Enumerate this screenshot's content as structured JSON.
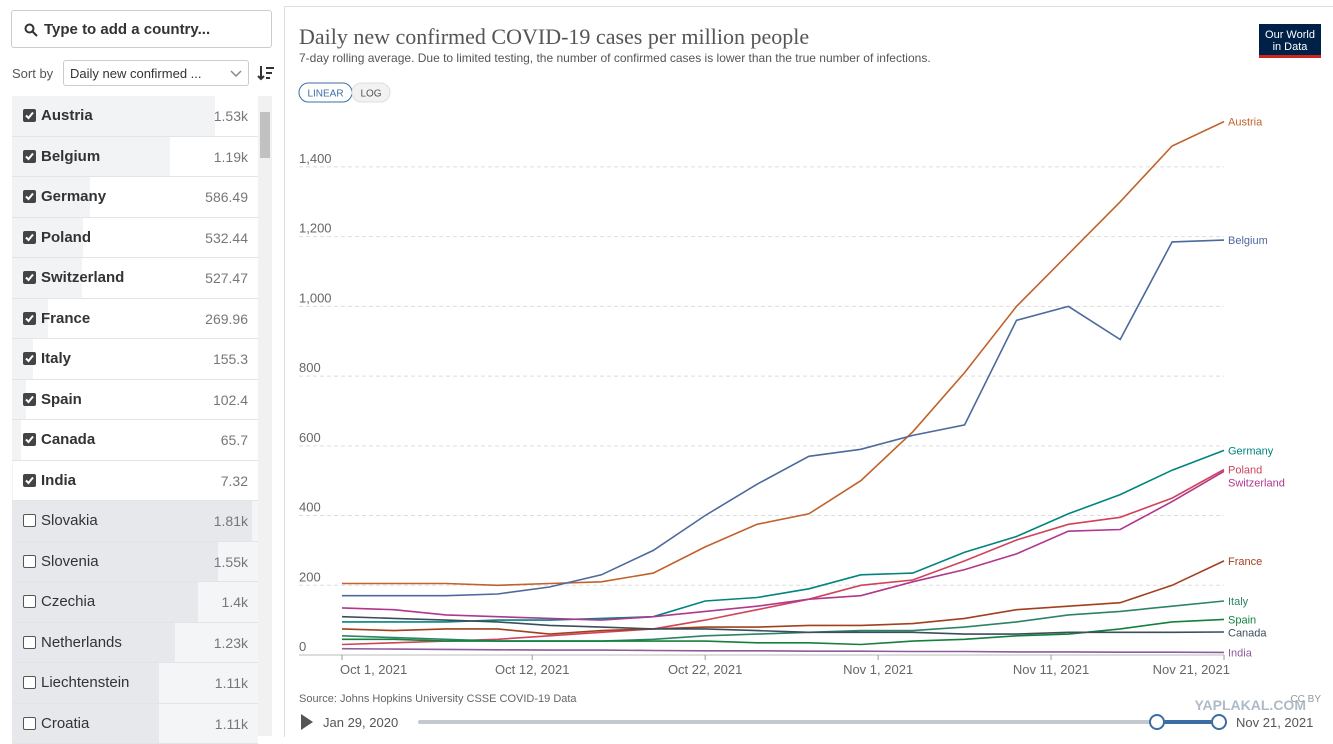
{
  "sidebar": {
    "search_placeholder": "Type to add a country...",
    "sort_label": "Sort by",
    "sort_value": "Daily new confirmed ...",
    "countries": [
      {
        "name": "Austria",
        "value": {
          "value": 1530,
          "label": "1.53k"
        },
        "checked": true
      },
      {
        "name": "Belgium",
        "value": {
          "value": 1190,
          "label": "1.19k"
        },
        "checked": true
      },
      {
        "name": "Germany",
        "value": 586.49,
        "checked": true
      },
      {
        "name": "Poland",
        "value": 532.44,
        "checked": true
      },
      {
        "name": "Switzerland",
        "value": 527.47,
        "checked": true
      },
      {
        "name": "France",
        "value": 269.96,
        "checked": true
      },
      {
        "name": "Italy",
        "value": 155.3,
        "checked": true
      },
      {
        "name": "Spain",
        "value": 102.4,
        "checked": true
      },
      {
        "name": "Canada",
        "value": 65.7,
        "checked": true
      },
      {
        "name": "India",
        "value": 7.32,
        "checked": true
      },
      {
        "name": "Slovakia",
        "value": {
          "value": 1810,
          "label": "1.81k"
        },
        "checked": false
      },
      {
        "name": "Slovenia",
        "value": {
          "value": 1550,
          "label": "1.55k"
        },
        "checked": false
      },
      {
        "name": "Czechia",
        "value": {
          "value": 1400,
          "label": "1.4k"
        },
        "checked": false
      },
      {
        "name": "Netherlands",
        "value": {
          "value": 1230,
          "label": "1.23k"
        },
        "checked": false
      },
      {
        "name": "Liechtenstein",
        "value": {
          "value": 1110,
          "label": "1.11k"
        },
        "checked": false
      },
      {
        "name": "Croatia",
        "value": {
          "value": 1110,
          "label": "1.11k"
        },
        "checked": false
      }
    ]
  },
  "header": {
    "logo": "Our World in Data",
    "linear_button": "LINEAR",
    "log_button": "LOG"
  },
  "footer": {
    "source": "Source: Johns Hopkins University CSSE COVID-19 Data",
    "license": "CC BY",
    "timeline_start": "Jan 29, 2020",
    "timeline_end": "Nov 21, 2021",
    "watermark": "YAPLAKAL.COM"
  },
  "chart_data": {
    "type": "line",
    "title": "Daily new confirmed COVID-19 cases per million people",
    "subtitle": "7-day rolling average. Due to limited testing, the number of confirmed cases is lower than the true number of infections.",
    "x": [
      "Oct 1, 2021",
      "Oct 4, 2021",
      "Oct 7, 2021",
      "Oct 10, 2021",
      "Oct 13, 2021",
      "Oct 16, 2021",
      "Oct 19, 2021",
      "Oct 22, 2021",
      "Oct 25, 2021",
      "Oct 28, 2021",
      "Oct 31, 2021",
      "Nov 3, 2021",
      "Nov 6, 2021",
      "Nov 9, 2021",
      "Nov 12, 2021",
      "Nov 15, 2021",
      "Nov 18, 2021",
      "Nov 21, 2021"
    ],
    "xlim": [
      "Oct 1, 2021",
      "Nov 21, 2021"
    ],
    "xticks": [
      "Oct 1, 2021",
      "Oct 12, 2021",
      "Oct 22, 2021",
      "Nov 1, 2021",
      "Nov 11, 2021",
      "Nov 21, 2021"
    ],
    "ylim": [
      0,
      1530
    ],
    "yticks": [
      0,
      200,
      400,
      600,
      800,
      {
        "value": 1000,
        "label": "1,000"
      },
      {
        "value": 1200,
        "label": "1,200"
      },
      {
        "value": 1400,
        "label": "1,400"
      }
    ],
    "grid": true,
    "series": [
      {
        "name": "Austria",
        "color": "#c0622a",
        "values": [
          205,
          205,
          205,
          200,
          205,
          210,
          235,
          310,
          375,
          405,
          500,
          640,
          810,
          1000,
          1150,
          1300,
          1460,
          1530
        ]
      },
      {
        "name": "Belgium",
        "color": "#4c6a9c",
        "values": [
          170,
          170,
          170,
          175,
          195,
          230,
          300,
          400,
          490,
          570,
          590,
          630,
          660,
          960,
          1000,
          905,
          1185,
          1190
        ]
      },
      {
        "name": "Germany",
        "color": "#00847e",
        "values": [
          95,
          95,
          95,
          100,
          100,
          105,
          110,
          155,
          165,
          190,
          230,
          235,
          295,
          340,
          405,
          460,
          530,
          587
        ]
      },
      {
        "name": "Poland",
        "color": "#d1435b",
        "values": [
          30,
          35,
          40,
          45,
          55,
          65,
          75,
          100,
          130,
          160,
          200,
          215,
          270,
          330,
          375,
          395,
          450,
          532
        ]
      },
      {
        "name": "Switzerland",
        "color": "#b0368e",
        "values": [
          135,
          130,
          115,
          110,
          105,
          100,
          110,
          125,
          140,
          160,
          170,
          210,
          245,
          290,
          355,
          360,
          440,
          527
        ]
      },
      {
        "name": "France",
        "color": "#a2401e",
        "values": [
          75,
          70,
          75,
          75,
          60,
          70,
          75,
          80,
          80,
          85,
          85,
          90,
          105,
          130,
          140,
          150,
          200,
          270
        ]
      },
      {
        "name": "Italy",
        "color": "#2c8465",
        "values": [
          55,
          50,
          45,
          40,
          40,
          40,
          45,
          55,
          60,
          65,
          70,
          70,
          80,
          95,
          115,
          125,
          140,
          155
        ]
      },
      {
        "name": "Spain",
        "color": "#15803d",
        "values": [
          45,
          45,
          40,
          40,
          40,
          40,
          40,
          40,
          35,
          35,
          30,
          40,
          45,
          55,
          60,
          75,
          95,
          102
        ]
      },
      {
        "name": "Canada",
        "color": "#3c4e5a",
        "values": [
          110,
          105,
          100,
          95,
          85,
          80,
          75,
          75,
          70,
          65,
          65,
          65,
          60,
          60,
          65,
          65,
          65,
          66
        ]
      },
      {
        "name": "India",
        "color": "#8e5b9c",
        "values": [
          18,
          17,
          16,
          15,
          14,
          14,
          13,
          12,
          12,
          11,
          11,
          10,
          10,
          9,
          9,
          8,
          8,
          7.32
        ]
      }
    ]
  }
}
